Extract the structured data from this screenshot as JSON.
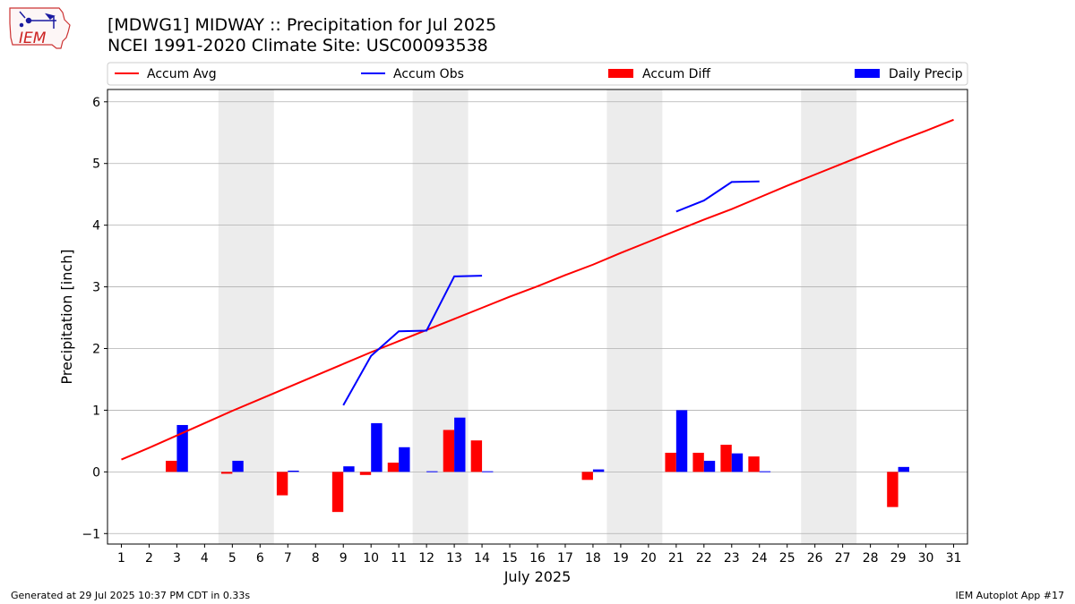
{
  "header": {
    "title_line1": "[MDWG1] MIDWAY :: Precipitation for Jul 2025",
    "title_line2": "NCEI 1991-2020 Climate Site: USC00093538",
    "logo_text": "IEM"
  },
  "footer": {
    "generated": "Generated at 29 Jul 2025 10:37 PM CDT in 0.33s",
    "app": "IEM Autoplot App #17"
  },
  "colors": {
    "avg": "#ff0000",
    "obs": "#0000ff",
    "diff": "#ff0000",
    "daily": "#0000ff",
    "weekend": "#ececec",
    "grid": "#b0b0b0"
  },
  "chart_data": {
    "type": "bar+line",
    "title": "[MDWG1] MIDWAY :: Precipitation for Jul 2025",
    "xlabel": "July 2025",
    "ylabel": "Precipitation [inch]",
    "xlim": [
      0.5,
      31.5
    ],
    "ylim": [
      -1.17,
      6.2
    ],
    "yticks": [
      -1,
      0,
      1,
      2,
      3,
      4,
      5,
      6
    ],
    "grid": true,
    "legend_position": "top",
    "days": [
      1,
      2,
      3,
      4,
      5,
      6,
      7,
      8,
      9,
      10,
      11,
      12,
      13,
      14,
      15,
      16,
      17,
      18,
      19,
      20,
      21,
      22,
      23,
      24,
      25,
      26,
      27,
      28,
      29,
      30,
      31
    ],
    "shaded_weekends": [
      [
        5,
        6
      ],
      [
        12,
        13
      ],
      [
        19,
        20
      ],
      [
        26,
        27
      ]
    ],
    "series": [
      {
        "name": "Accum Avg",
        "kind": "line",
        "values": [
          0.2,
          0.39,
          0.59,
          0.79,
          0.99,
          1.18,
          1.37,
          1.56,
          1.75,
          1.94,
          2.12,
          2.3,
          2.48,
          2.66,
          2.84,
          3.01,
          3.19,
          3.36,
          3.55,
          3.73,
          3.91,
          4.09,
          4.26,
          4.45,
          4.64,
          4.82,
          5.0,
          5.18,
          5.36,
          5.53,
          5.71
        ]
      },
      {
        "name": "Accum Obs",
        "kind": "line",
        "values": [
          null,
          null,
          null,
          null,
          null,
          null,
          null,
          null,
          1.08,
          1.88,
          2.28,
          2.29,
          3.17,
          3.18,
          null,
          null,
          null,
          null,
          null,
          null,
          4.22,
          4.4,
          4.7,
          4.71,
          null,
          null,
          null,
          null,
          null,
          null,
          null
        ]
      },
      {
        "name": "Accum Diff",
        "kind": "bar",
        "values": [
          0,
          0,
          0.18,
          0,
          -0.03,
          0,
          -0.38,
          0,
          -0.65,
          -0.05,
          0.15,
          0,
          0.68,
          0.51,
          0,
          0,
          0,
          -0.13,
          0,
          0,
          0.31,
          0.31,
          0.44,
          0.25,
          0,
          0,
          0,
          0,
          -0.57,
          0,
          0
        ]
      },
      {
        "name": "Daily Precip",
        "kind": "bar",
        "values": [
          0,
          0,
          0.76,
          0,
          0.18,
          0,
          0.02,
          0,
          0.09,
          0.79,
          0.4,
          0.01,
          0.88,
          0.01,
          0,
          0,
          0,
          0.04,
          0,
          0,
          1.0,
          0.18,
          0.3,
          0.01,
          0,
          0,
          0,
          0,
          0.08,
          0,
          0
        ]
      }
    ],
    "legend": [
      "Accum Avg",
      "Accum Obs",
      "Accum Diff",
      "Daily Precip"
    ]
  }
}
